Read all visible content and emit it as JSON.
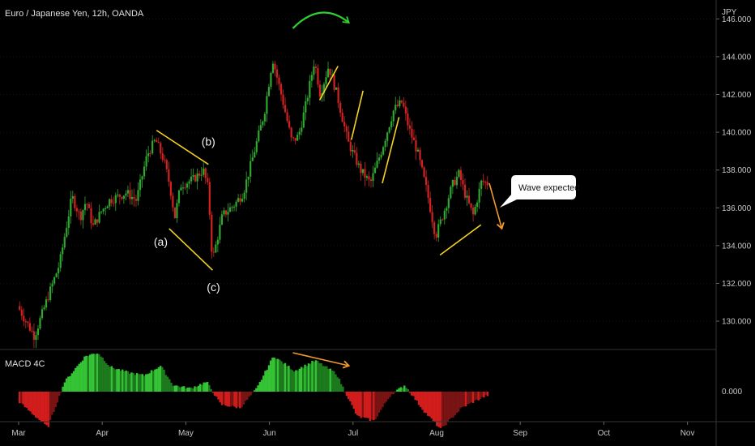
{
  "header": {
    "title": "Euro / Japanese Yen, 12h, OANDA"
  },
  "currency": "JPY",
  "indicator": {
    "name": "MACD 4C"
  },
  "callout": {
    "text": "Wave expected"
  },
  "colors": {
    "background": "#000000",
    "candle_up": "#2ea82e",
    "candle_down": "#d42121",
    "macd_up_strong": "#35c435",
    "macd_up_weak": "#1d7a1d",
    "macd_down_strong": "#d31d1d",
    "macd_down_weak": "#7a1414",
    "pattern_line": "#f5d320",
    "arrow_orange": "#f09a2c",
    "arrow_green": "#2fd12f",
    "grid": "#2a2a2a"
  },
  "chart_data": {
    "type": "candlestick",
    "title": "Euro / Japanese Yen, 12h, OANDA",
    "ylabel": "JPY",
    "ylim": [
      128.5,
      147.0
    ],
    "y_ticks": [
      "146.000",
      "144.000",
      "142.000",
      "140.000",
      "138.000",
      "136.000",
      "134.000",
      "132.000",
      "130.000"
    ],
    "x_ticks": [
      "Mar",
      "Apr",
      "May",
      "Jun",
      "Jul",
      "Aug",
      "Sep",
      "Oct",
      "Nov"
    ],
    "price_path": [
      {
        "t": 0,
        "v": 130.8
      },
      {
        "t": 0.2,
        "v": 129.2
      },
      {
        "t": 0.38,
        "v": 131.5
      },
      {
        "t": 0.5,
        "v": 133.0
      },
      {
        "t": 0.65,
        "v": 136.6
      },
      {
        "t": 0.75,
        "v": 135.5
      },
      {
        "t": 0.82,
        "v": 136.4
      },
      {
        "t": 0.9,
        "v": 135.0
      },
      {
        "t": 1.0,
        "v": 135.8
      },
      {
        "t": 1.1,
        "v": 136.4
      },
      {
        "t": 1.3,
        "v": 136.8
      },
      {
        "t": 1.42,
        "v": 136.4
      },
      {
        "t": 1.55,
        "v": 138.8
      },
      {
        "t": 1.65,
        "v": 139.6
      },
      {
        "t": 1.75,
        "v": 138.5
      },
      {
        "t": 1.82,
        "v": 137.2
      },
      {
        "t": 1.88,
        "v": 135.5
      },
      {
        "t": 1.95,
        "v": 137.2
      },
      {
        "t": 2.1,
        "v": 137.5
      },
      {
        "t": 2.22,
        "v": 138.0
      },
      {
        "t": 2.28,
        "v": 137.0
      },
      {
        "t": 2.33,
        "v": 133.2
      },
      {
        "t": 2.45,
        "v": 135.6
      },
      {
        "t": 2.6,
        "v": 136.2
      },
      {
        "t": 2.7,
        "v": 136.8
      },
      {
        "t": 2.82,
        "v": 138.8
      },
      {
        "t": 2.95,
        "v": 141.0
      },
      {
        "t": 3.05,
        "v": 143.9
      },
      {
        "t": 3.18,
        "v": 141.5
      },
      {
        "t": 3.28,
        "v": 139.5
      },
      {
        "t": 3.36,
        "v": 139.8
      },
      {
        "t": 3.45,
        "v": 141.5
      },
      {
        "t": 3.55,
        "v": 143.8
      },
      {
        "t": 3.62,
        "v": 142.0
      },
      {
        "t": 3.72,
        "v": 143.5
      },
      {
        "t": 3.82,
        "v": 142.0
      },
      {
        "t": 3.95,
        "v": 139.5
      },
      {
        "t": 4.1,
        "v": 138.0
      },
      {
        "t": 4.22,
        "v": 137.3
      },
      {
        "t": 4.35,
        "v": 139.0
      },
      {
        "t": 4.5,
        "v": 141.2
      },
      {
        "t": 4.6,
        "v": 141.6
      },
      {
        "t": 4.68,
        "v": 140.2
      },
      {
        "t": 4.78,
        "v": 139.0
      },
      {
        "t": 4.9,
        "v": 136.8
      },
      {
        "t": 5.0,
        "v": 134.5
      },
      {
        "t": 5.1,
        "v": 135.8
      },
      {
        "t": 5.2,
        "v": 137.2
      },
      {
        "t": 5.28,
        "v": 137.8
      },
      {
        "t": 5.36,
        "v": 136.6
      },
      {
        "t": 5.45,
        "v": 135.6
      },
      {
        "t": 5.55,
        "v": 137.4
      },
      {
        "t": 5.62,
        "v": 137.3
      }
    ],
    "macd_path": [
      {
        "t": 0,
        "v": -0.15
      },
      {
        "t": 0.35,
        "v": -0.55
      },
      {
        "t": 0.55,
        "v": 0.15
      },
      {
        "t": 0.8,
        "v": 0.55
      },
      {
        "t": 0.95,
        "v": 0.6
      },
      {
        "t": 1.1,
        "v": 0.38
      },
      {
        "t": 1.3,
        "v": 0.3
      },
      {
        "t": 1.5,
        "v": 0.25
      },
      {
        "t": 1.7,
        "v": 0.4
      },
      {
        "t": 1.85,
        "v": 0.1
      },
      {
        "t": 2.05,
        "v": 0.05
      },
      {
        "t": 2.25,
        "v": 0.15
      },
      {
        "t": 2.42,
        "v": -0.2
      },
      {
        "t": 2.65,
        "v": -0.25
      },
      {
        "t": 2.85,
        "v": 0.05
      },
      {
        "t": 3.05,
        "v": 0.55
      },
      {
        "t": 3.3,
        "v": 0.32
      },
      {
        "t": 3.55,
        "v": 0.48
      },
      {
        "t": 3.8,
        "v": 0.28
      },
      {
        "t": 4.05,
        "v": -0.38
      },
      {
        "t": 4.25,
        "v": -0.45
      },
      {
        "t": 4.45,
        "v": -0.05
      },
      {
        "t": 4.62,
        "v": 0.1
      },
      {
        "t": 4.85,
        "v": -0.3
      },
      {
        "t": 5.05,
        "v": -0.58
      },
      {
        "t": 5.3,
        "v": -0.25
      },
      {
        "t": 5.45,
        "v": -0.15
      },
      {
        "t": 5.62,
        "v": -0.05
      }
    ],
    "candle_count": 230,
    "annotations": [
      {
        "label": "(a)",
        "t": 1.7,
        "price": 134.0
      },
      {
        "label": "(b)",
        "t": 2.27,
        "price": 139.3
      },
      {
        "label": "(c)",
        "t": 2.33,
        "price": 131.6
      }
    ],
    "pattern_lines": [
      {
        "from": {
          "t": 1.65,
          "price": 140.1
        },
        "to": {
          "t": 2.27,
          "price": 138.3
        }
      },
      {
        "from": {
          "t": 1.8,
          "price": 134.9
        },
        "to": {
          "t": 2.32,
          "price": 132.7
        }
      },
      {
        "from": {
          "t": 3.6,
          "price": 141.7
        },
        "to": {
          "t": 3.82,
          "price": 143.5
        }
      },
      {
        "from": {
          "t": 3.98,
          "price": 139.6
        },
        "to": {
          "t": 4.12,
          "price": 142.2
        }
      },
      {
        "from": {
          "t": 4.35,
          "price": 137.3
        },
        "to": {
          "t": 4.55,
          "price": 140.8
        }
      },
      {
        "from": {
          "t": 5.04,
          "price": 133.5
        },
        "to": {
          "t": 5.53,
          "price": 135.1
        }
      }
    ],
    "arrows": [
      {
        "kind": "curved",
        "color": "green",
        "from": {
          "t": 3.28,
          "price": 145.5
        },
        "to": {
          "t": 3.95,
          "price": 145.8
        }
      },
      {
        "kind": "straight",
        "color": "orange",
        "from": {
          "t": 5.63,
          "price": 137.3
        },
        "to": {
          "t": 5.78,
          "price": 134.9
        }
      },
      {
        "kind": "straight",
        "color": "orange",
        "pane": "macd",
        "from": {
          "t": 3.28,
          "v": 0.6
        },
        "to": {
          "t": 3.95,
          "v": 0.4
        }
      }
    ]
  }
}
